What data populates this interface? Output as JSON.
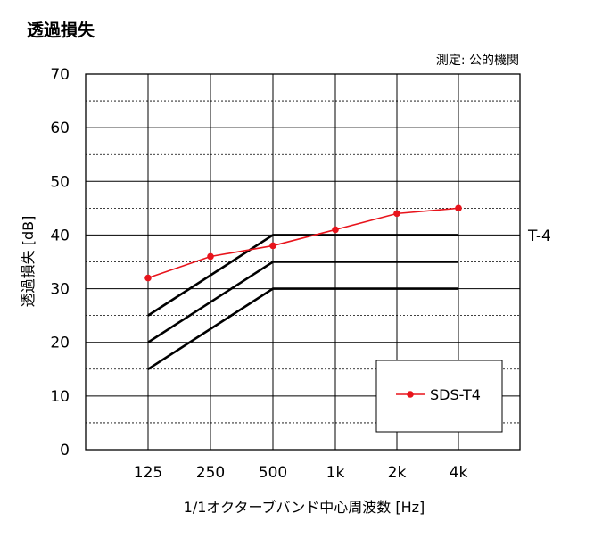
{
  "chart_data": {
    "type": "line",
    "title": "透過損失",
    "source_note": "測定: 公的機関",
    "xlabel": "1/1オクターブバンド中心周波数 [Hz]",
    "ylabel": "透過損失 [dB]",
    "categories": [
      "125",
      "250",
      "500",
      "1k",
      "2k",
      "4k"
    ],
    "ylim": [
      0,
      70
    ],
    "yticks": [
      0,
      10,
      20,
      30,
      40,
      50,
      60,
      70
    ],
    "grid": "major solid, minor dashed every 5 dB; vertical solid",
    "series": [
      {
        "name": "SDS-T4",
        "values": [
          32,
          36,
          38,
          41,
          44,
          45
        ],
        "color": "#e8141c",
        "marker": "circle"
      }
    ],
    "reference_curves": [
      {
        "label": "T-4",
        "values": [
          25,
          null,
          40,
          40,
          40,
          40
        ],
        "color": "#000000"
      },
      {
        "values": [
          20,
          null,
          35,
          35,
          35,
          35
        ],
        "color": "#000000"
      },
      {
        "values": [
          15,
          null,
          30,
          30,
          30,
          30
        ],
        "color": "#000000"
      }
    ],
    "legend_position": "bottom-right"
  }
}
